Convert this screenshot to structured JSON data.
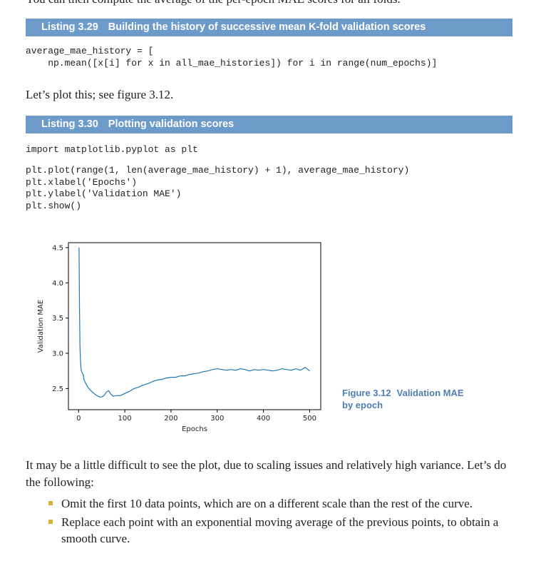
{
  "top_line": "You can then compute the average of the per-epoch MAE scores for all folds.",
  "listing_329": {
    "number": "Listing 3.29",
    "title": "Building the history of successive mean K-fold validation scores",
    "code": [
      "average_mae_history = [",
      "    np.mean([x[i] for x in all_mae_histories]) for i in range(num_epochs)]"
    ]
  },
  "plot_intro": "Let’s plot this; see figure 3.12.",
  "listing_330": {
    "number": "Listing 3.30",
    "title": "Plotting validation scores",
    "code_import": "import matplotlib.pyplot as plt",
    "code_body": [
      "plt.plot(range(1, len(average_mae_history) + 1), average_mae_history)",
      "plt.xlabel('Epochs')",
      "plt.ylabel('Validation MAE')",
      "plt.show()"
    ]
  },
  "figure": {
    "number": "Figure 3.12",
    "caption": "Validation MAE by epoch"
  },
  "chart_data": {
    "type": "line",
    "title": "",
    "xlabel": "Epochs",
    "ylabel": "Validation MAE",
    "xlim": [
      -22,
      524
    ],
    "ylim": [
      2.2,
      4.57
    ],
    "xticks": [
      0,
      100,
      200,
      300,
      400,
      500
    ],
    "xtick_labels": [
      "0",
      "100",
      "200",
      "300",
      "400",
      "500"
    ],
    "yticks": [
      2.5,
      3.0,
      3.5,
      4.0,
      4.5
    ],
    "ytick_labels": [
      "2.5",
      "3.0",
      "3.5",
      "4.0",
      "4.5"
    ],
    "grid": false,
    "line_color": "#1f77b4",
    "series": [
      {
        "x": [
          1,
          2,
          3,
          4,
          5,
          6,
          8,
          10,
          12,
          15,
          20,
          25,
          30,
          35,
          40,
          45,
          50,
          55,
          60,
          65,
          70,
          75,
          80,
          90,
          100,
          110,
          120,
          130,
          140,
          150,
          160,
          170,
          180,
          190,
          200,
          210,
          220,
          230,
          240,
          250,
          260,
          270,
          280,
          290,
          300,
          310,
          320,
          330,
          340,
          350,
          360,
          370,
          380,
          390,
          400,
          410,
          420,
          430,
          440,
          450,
          460,
          470,
          480,
          490,
          500
        ],
        "y": [
          4.5,
          3.6,
          3.1,
          2.9,
          2.8,
          2.75,
          2.72,
          2.7,
          2.62,
          2.58,
          2.52,
          2.48,
          2.45,
          2.42,
          2.4,
          2.38,
          2.38,
          2.4,
          2.45,
          2.47,
          2.42,
          2.39,
          2.4,
          2.4,
          2.43,
          2.46,
          2.5,
          2.52,
          2.55,
          2.57,
          2.6,
          2.62,
          2.63,
          2.65,
          2.66,
          2.66,
          2.68,
          2.68,
          2.7,
          2.71,
          2.72,
          2.74,
          2.75,
          2.77,
          2.78,
          2.77,
          2.76,
          2.77,
          2.76,
          2.78,
          2.77,
          2.75,
          2.77,
          2.76,
          2.77,
          2.76,
          2.75,
          2.76,
          2.78,
          2.77,
          2.76,
          2.78,
          2.76,
          2.8,
          2.75
        ]
      }
    ]
  },
  "bottom_para": "It may be a little difficult to see the plot, due to scaling issues and relatively high variance. Let’s do the following:",
  "bullets": [
    "Omit the first 10 data points, which are on a different scale than the rest of the curve.",
    "Replace each point with an exponential moving average of the previous points, to obtain a smooth curve."
  ]
}
